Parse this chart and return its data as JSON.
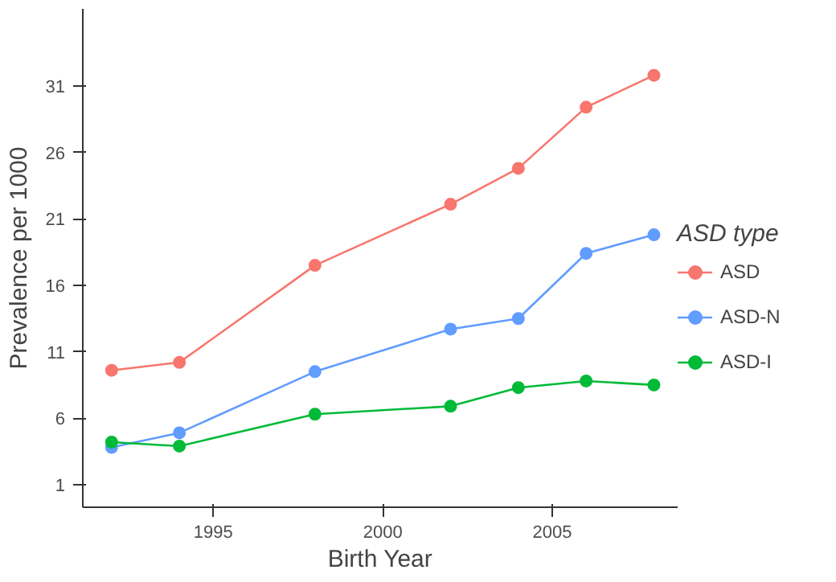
{
  "chart_data": {
    "type": "line",
    "xlabel": "Birth Year",
    "ylabel": "Prevalence per 1000",
    "legend_title": "ASD type",
    "x": [
      1992,
      1994,
      1998,
      2002,
      2004,
      2006,
      2008
    ],
    "series": [
      {
        "name": "ASD",
        "color": "#f8766d",
        "values": [
          9.6,
          10.2,
          17.5,
          22.1,
          24.8,
          29.4,
          31.8
        ]
      },
      {
        "name": "ASD-N",
        "color": "#619cff",
        "values": [
          3.8,
          4.9,
          9.5,
          12.7,
          13.5,
          18.4,
          19.8
        ]
      },
      {
        "name": "ASD-I",
        "color": "#00ba38",
        "values": [
          4.2,
          3.9,
          6.3,
          6.9,
          8.3,
          8.8,
          8.5
        ]
      }
    ],
    "xlim": [
      1991.15,
      2008.7
    ],
    "ylim": [
      -0.7,
      36.8
    ],
    "xticks": [
      1995,
      2000,
      2005
    ],
    "yticks": [
      1,
      6,
      11,
      16,
      21,
      26,
      31
    ],
    "grid": false,
    "legend": "right",
    "marker": "circle",
    "line_style": "solid"
  }
}
